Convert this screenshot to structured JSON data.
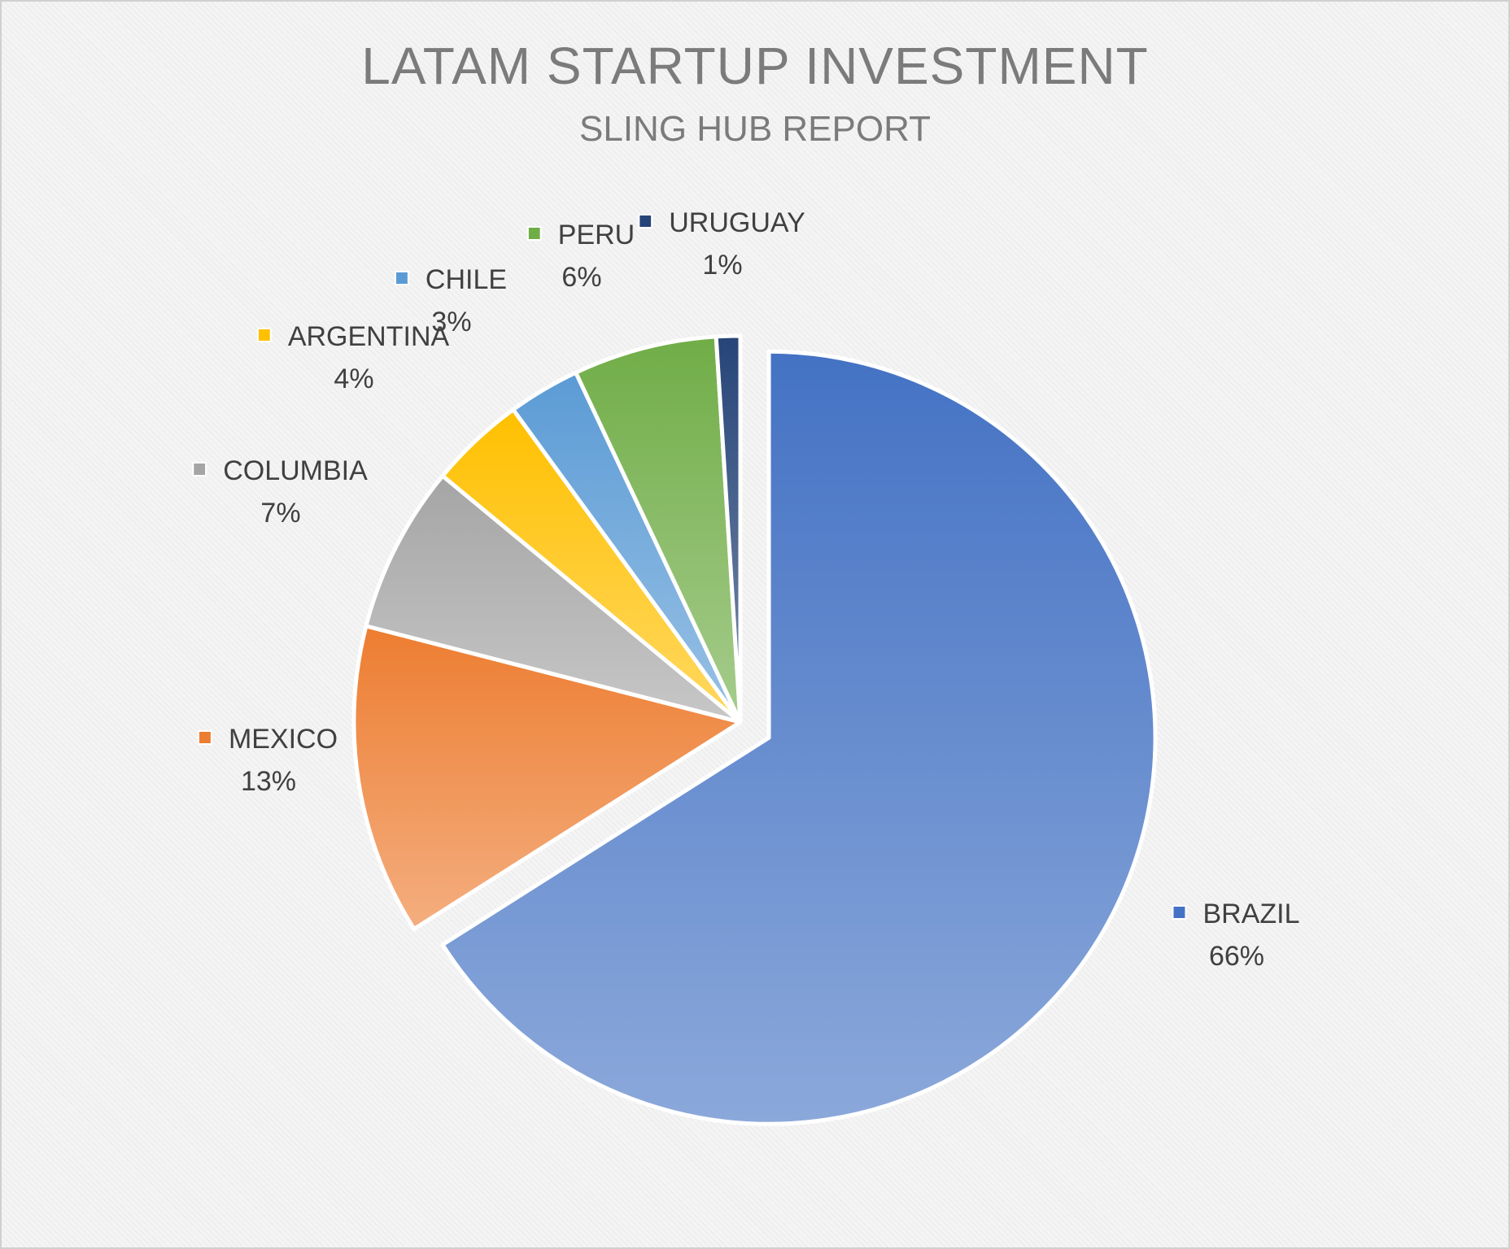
{
  "chart_data": {
    "type": "pie",
    "title": "LATAM STARTUP INVESTMENT",
    "subtitle": "SLING HUB REPORT",
    "categories": [
      "BRAZIL",
      "MEXICO",
      "COLUMBIA",
      "ARGENTINA",
      "CHILE",
      "PERU",
      "URUGUAY"
    ],
    "values": [
      66,
      13,
      7,
      4,
      3,
      6,
      1
    ],
    "percent_labels": [
      "66%",
      "13%",
      "7%",
      "4%",
      "3%",
      "6%",
      "1%"
    ],
    "colors": [
      "#4472C4",
      "#ED7D31",
      "#A5A5A5",
      "#FFC000",
      "#5B9BD5",
      "#70AD47",
      "#264478"
    ],
    "exploded": [
      "BRAZIL"
    ],
    "legend": "data labels with key"
  }
}
